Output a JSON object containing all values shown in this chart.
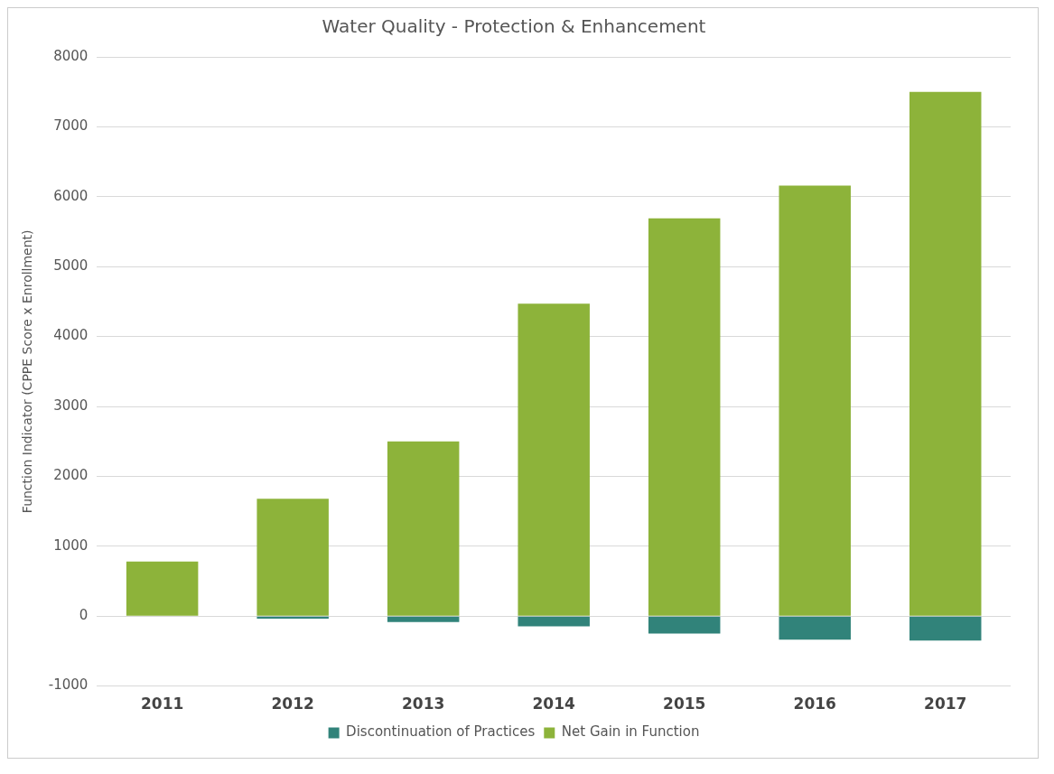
{
  "chart_data": {
    "type": "bar",
    "title": "Water Quality - Protection & Enhancement",
    "ylabel": "Function Indicator (CPPE Score x Enrollment)",
    "categories": [
      "2011",
      "2012",
      "2013",
      "2014",
      "2015",
      "2016",
      "2017"
    ],
    "stacked": true,
    "series": [
      {
        "name": "Discontinuation of Practices",
        "color": "#31837a",
        "values": [
          0,
          -35,
          -85,
          -145,
          -250,
          -335,
          -350
        ]
      },
      {
        "name": "Net Gain in Function",
        "color": "#8db33a",
        "values": [
          780,
          1680,
          2500,
          4470,
          5690,
          6160,
          7500
        ]
      }
    ],
    "ylim": [
      -1000,
      8000
    ],
    "yticks": [
      -1000,
      0,
      1000,
      2000,
      3000,
      4000,
      5000,
      6000,
      7000,
      8000
    ],
    "grid": "y",
    "legend": "bottom"
  }
}
